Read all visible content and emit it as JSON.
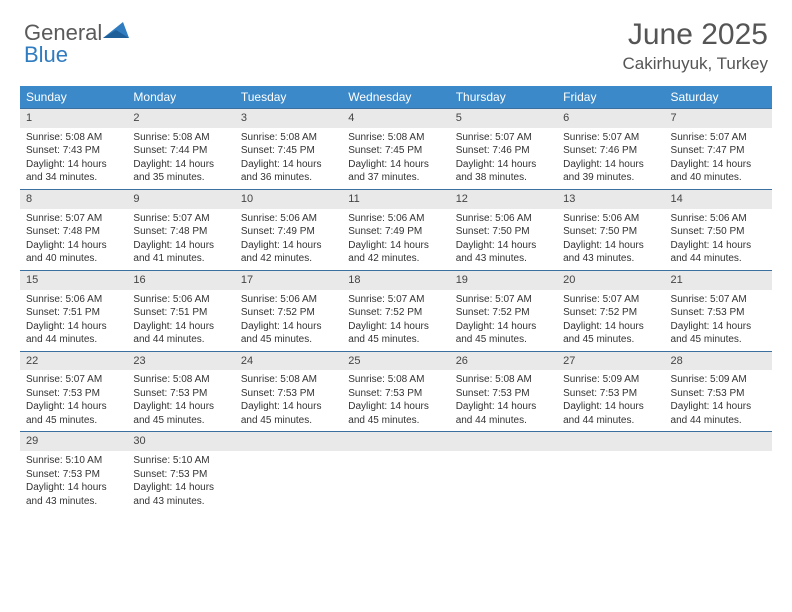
{
  "brand": {
    "part1": "General",
    "part2": "Blue"
  },
  "title": "June 2025",
  "location": "Cakirhuyuk, Turkey",
  "colors": {
    "header_bg": "#3b89c9",
    "header_text": "#ffffff",
    "daynum_bg": "#e9e9e9",
    "row_border": "#3b6fa0",
    "text": "#333333",
    "brand_gray": "#5a5a5a",
    "brand_blue": "#2f7cc0"
  },
  "weekdays": [
    "Sunday",
    "Monday",
    "Tuesday",
    "Wednesday",
    "Thursday",
    "Friday",
    "Saturday"
  ],
  "weeks": [
    [
      {
        "n": "1",
        "sr": "5:08 AM",
        "ss": "7:43 PM",
        "dl": "14 hours and 34 minutes."
      },
      {
        "n": "2",
        "sr": "5:08 AM",
        "ss": "7:44 PM",
        "dl": "14 hours and 35 minutes."
      },
      {
        "n": "3",
        "sr": "5:08 AM",
        "ss": "7:45 PM",
        "dl": "14 hours and 36 minutes."
      },
      {
        "n": "4",
        "sr": "5:08 AM",
        "ss": "7:45 PM",
        "dl": "14 hours and 37 minutes."
      },
      {
        "n": "5",
        "sr": "5:07 AM",
        "ss": "7:46 PM",
        "dl": "14 hours and 38 minutes."
      },
      {
        "n": "6",
        "sr": "5:07 AM",
        "ss": "7:46 PM",
        "dl": "14 hours and 39 minutes."
      },
      {
        "n": "7",
        "sr": "5:07 AM",
        "ss": "7:47 PM",
        "dl": "14 hours and 40 minutes."
      }
    ],
    [
      {
        "n": "8",
        "sr": "5:07 AM",
        "ss": "7:48 PM",
        "dl": "14 hours and 40 minutes."
      },
      {
        "n": "9",
        "sr": "5:07 AM",
        "ss": "7:48 PM",
        "dl": "14 hours and 41 minutes."
      },
      {
        "n": "10",
        "sr": "5:06 AM",
        "ss": "7:49 PM",
        "dl": "14 hours and 42 minutes."
      },
      {
        "n": "11",
        "sr": "5:06 AM",
        "ss": "7:49 PM",
        "dl": "14 hours and 42 minutes."
      },
      {
        "n": "12",
        "sr": "5:06 AM",
        "ss": "7:50 PM",
        "dl": "14 hours and 43 minutes."
      },
      {
        "n": "13",
        "sr": "5:06 AM",
        "ss": "7:50 PM",
        "dl": "14 hours and 43 minutes."
      },
      {
        "n": "14",
        "sr": "5:06 AM",
        "ss": "7:50 PM",
        "dl": "14 hours and 44 minutes."
      }
    ],
    [
      {
        "n": "15",
        "sr": "5:06 AM",
        "ss": "7:51 PM",
        "dl": "14 hours and 44 minutes."
      },
      {
        "n": "16",
        "sr": "5:06 AM",
        "ss": "7:51 PM",
        "dl": "14 hours and 44 minutes."
      },
      {
        "n": "17",
        "sr": "5:06 AM",
        "ss": "7:52 PM",
        "dl": "14 hours and 45 minutes."
      },
      {
        "n": "18",
        "sr": "5:07 AM",
        "ss": "7:52 PM",
        "dl": "14 hours and 45 minutes."
      },
      {
        "n": "19",
        "sr": "5:07 AM",
        "ss": "7:52 PM",
        "dl": "14 hours and 45 minutes."
      },
      {
        "n": "20",
        "sr": "5:07 AM",
        "ss": "7:52 PM",
        "dl": "14 hours and 45 minutes."
      },
      {
        "n": "21",
        "sr": "5:07 AM",
        "ss": "7:53 PM",
        "dl": "14 hours and 45 minutes."
      }
    ],
    [
      {
        "n": "22",
        "sr": "5:07 AM",
        "ss": "7:53 PM",
        "dl": "14 hours and 45 minutes."
      },
      {
        "n": "23",
        "sr": "5:08 AM",
        "ss": "7:53 PM",
        "dl": "14 hours and 45 minutes."
      },
      {
        "n": "24",
        "sr": "5:08 AM",
        "ss": "7:53 PM",
        "dl": "14 hours and 45 minutes."
      },
      {
        "n": "25",
        "sr": "5:08 AM",
        "ss": "7:53 PM",
        "dl": "14 hours and 45 minutes."
      },
      {
        "n": "26",
        "sr": "5:08 AM",
        "ss": "7:53 PM",
        "dl": "14 hours and 44 minutes."
      },
      {
        "n": "27",
        "sr": "5:09 AM",
        "ss": "7:53 PM",
        "dl": "14 hours and 44 minutes."
      },
      {
        "n": "28",
        "sr": "5:09 AM",
        "ss": "7:53 PM",
        "dl": "14 hours and 44 minutes."
      }
    ],
    [
      {
        "n": "29",
        "sr": "5:10 AM",
        "ss": "7:53 PM",
        "dl": "14 hours and 43 minutes."
      },
      {
        "n": "30",
        "sr": "5:10 AM",
        "ss": "7:53 PM",
        "dl": "14 hours and 43 minutes."
      },
      null,
      null,
      null,
      null,
      null
    ]
  ],
  "labels": {
    "sunrise": "Sunrise:",
    "sunset": "Sunset:",
    "daylight": "Daylight:"
  }
}
